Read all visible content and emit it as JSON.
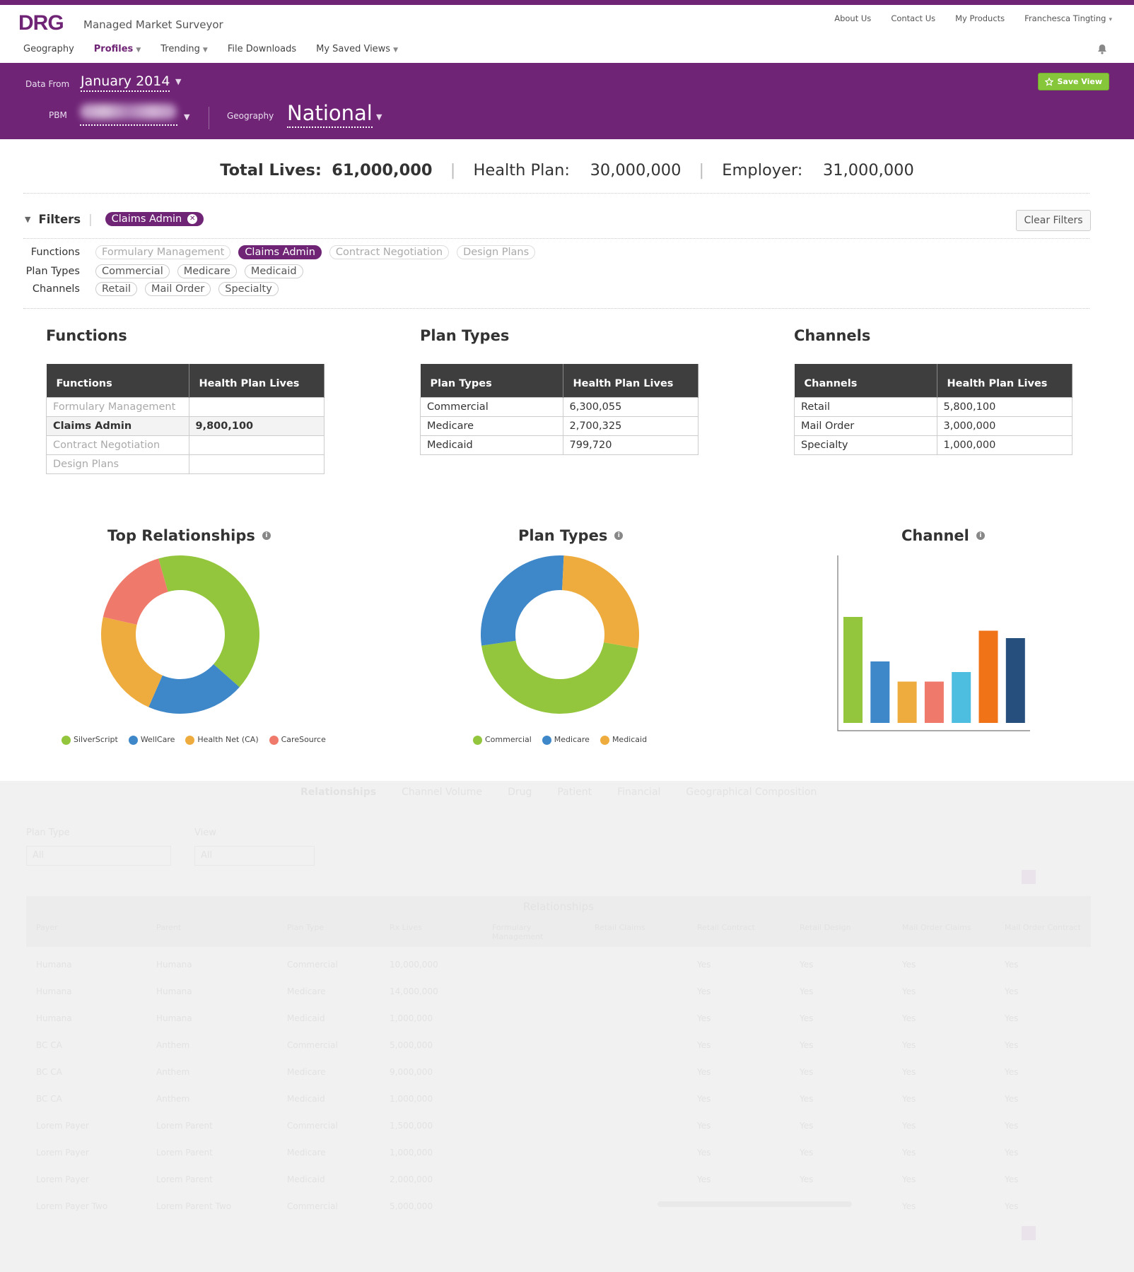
{
  "app": {
    "logo": "DRG",
    "name": "Managed Market Surveyor"
  },
  "util_nav": [
    "About Us",
    "Contact Us",
    "My Products",
    "Franchesca Tingting"
  ],
  "main_nav": [
    {
      "label": "Geography",
      "active": false,
      "caret": false
    },
    {
      "label": "Profiles",
      "active": true,
      "caret": true
    },
    {
      "label": "Trending",
      "active": false,
      "caret": true
    },
    {
      "label": "File Downloads",
      "active": false,
      "caret": false
    },
    {
      "label": "My Saved Views",
      "active": false,
      "caret": true
    }
  ],
  "banner": {
    "data_from_label": "Data From",
    "data_from_value": "January 2014",
    "pbm_label": "PBM",
    "geography_label": "Geography",
    "geography_value": "National",
    "save_view": "Save View"
  },
  "totals": {
    "total_label": "Total Lives:",
    "total_value": "61,000,000",
    "health_label": "Health Plan:",
    "health_value": "30,000,000",
    "employer_label": "Employer:",
    "employer_value": "31,000,000"
  },
  "filters": {
    "title": "Filters",
    "active_chip": "Claims Admin",
    "clear": "Clear Filters",
    "rows": [
      {
        "label": "Functions",
        "pills": [
          {
            "text": "Formulary Management",
            "state": "dim"
          },
          {
            "text": "Claims Admin",
            "state": "on"
          },
          {
            "text": "Contract Negotiation",
            "state": "dim"
          },
          {
            "text": "Design Plans",
            "state": "dim"
          }
        ]
      },
      {
        "label": "Plan Types",
        "pills": [
          {
            "text": "Commercial",
            "state": "normal"
          },
          {
            "text": "Medicare",
            "state": "normal"
          },
          {
            "text": "Medicaid",
            "state": "normal"
          }
        ]
      },
      {
        "label": "Channels",
        "pills": [
          {
            "text": "Retail",
            "state": "normal"
          },
          {
            "text": "Mail Order",
            "state": "normal"
          },
          {
            "text": "Specialty",
            "state": "normal"
          }
        ]
      }
    ]
  },
  "tables": [
    {
      "title": "Functions",
      "headers": [
        "Functions",
        "Health Plan Lives"
      ],
      "rows": [
        {
          "name": "Formulary Management",
          "value": "",
          "style": "dim"
        },
        {
          "name": "Claims Admin",
          "value": "9,800,100",
          "style": "hl"
        },
        {
          "name": "Contract Negotiation",
          "value": "",
          "style": "dim"
        },
        {
          "name": "Design Plans",
          "value": "",
          "style": "dim"
        }
      ]
    },
    {
      "title": "Plan Types",
      "headers": [
        "Plan Types",
        "Health Plan Lives"
      ],
      "rows": [
        {
          "name": "Commercial",
          "value": "6,300,055",
          "style": ""
        },
        {
          "name": "Medicare",
          "value": "2,700,325",
          "style": ""
        },
        {
          "name": "Medicaid",
          "value": "799,720",
          "style": ""
        }
      ]
    },
    {
      "title": "Channels",
      "headers": [
        "Channels",
        "Health Plan Lives"
      ],
      "rows": [
        {
          "name": "Retail",
          "value": "5,800,100",
          "style": ""
        },
        {
          "name": "Mail Order",
          "value": "3,000,000",
          "style": ""
        },
        {
          "name": "Specialty",
          "value": "1,000,000",
          "style": ""
        }
      ]
    }
  ],
  "chart_data": [
    {
      "type": "pie",
      "title": "Top Relationships",
      "labels": [
        "SilverScript",
        "WellCare",
        "Health Net (CA)",
        "CareSource"
      ],
      "values": [
        41,
        20,
        22,
        17
      ],
      "colors": [
        "#93c63d",
        "#3e87c9",
        "#efac3e",
        "#ef7a6b"
      ]
    },
    {
      "type": "pie",
      "title": "Plan Types",
      "labels": [
        "Commercial",
        "Medicare",
        "Medicaid"
      ],
      "values": [
        45,
        28,
        27
      ],
      "colors": [
        "#93c63d",
        "#3e87c9",
        "#efac3e"
      ]
    },
    {
      "type": "bar",
      "title": "Channel",
      "values": [
        100,
        58,
        39,
        39,
        48,
        87,
        80
      ],
      "colors": [
        "#93c63d",
        "#3e87c9",
        "#efac3e",
        "#ef7a6b",
        "#4dbde0",
        "#f07317",
        "#264f7e"
      ]
    }
  ],
  "lower_section": {
    "tabs": [
      "Relationships",
      "Channel Volume",
      "Drug",
      "Patient",
      "Financial",
      "Geographical Composition"
    ],
    "plan_type_label": "Plan Type",
    "plan_type_value": "All",
    "view_label": "View",
    "view_value": "All",
    "table_title": "Relationships",
    "columns": [
      "Payer",
      "Parent",
      "Plan Type",
      "Rx Lives",
      "Formulary Management",
      "Retail Claims",
      "Retail Contract",
      "Retail Design",
      "Mail Order Claims",
      "Mail Order Contract"
    ],
    "rows": [
      [
        "Humana",
        "Humana",
        "Commercial",
        "10,000,000",
        "",
        "",
        "Yes",
        "Yes",
        "Yes",
        "Yes"
      ],
      [
        "Humana",
        "Humana",
        "Medicare",
        "14,000,000",
        "",
        "",
        "Yes",
        "Yes",
        "Yes",
        "Yes"
      ],
      [
        "Humana",
        "Humana",
        "Medicaid",
        "1,000,000",
        "",
        "",
        "Yes",
        "Yes",
        "Yes",
        "Yes"
      ],
      [
        "BC CA",
        "Anthem",
        "Commercial",
        "5,000,000",
        "",
        "",
        "Yes",
        "Yes",
        "Yes",
        "Yes"
      ],
      [
        "BC CA",
        "Anthem",
        "Medicare",
        "9,000,000",
        "",
        "",
        "Yes",
        "Yes",
        "Yes",
        "Yes"
      ],
      [
        "BC CA",
        "Anthem",
        "Medicaid",
        "1,000,000",
        "",
        "",
        "Yes",
        "Yes",
        "Yes",
        "Yes"
      ],
      [
        "Lorem Payer",
        "Lorem Parent",
        "Commercial",
        "1,500,000",
        "",
        "",
        "Yes",
        "Yes",
        "Yes",
        "Yes"
      ],
      [
        "Lorem Payer",
        "Lorem Parent",
        "Medicare",
        "1,000,000",
        "",
        "",
        "Yes",
        "Yes",
        "Yes",
        "Yes"
      ],
      [
        "Lorem Payer",
        "Lorem Parent",
        "Medicaid",
        "2,000,000",
        "",
        "",
        "Yes",
        "Yes",
        "Yes",
        "Yes"
      ],
      [
        "Lorem Payer Two",
        "Lorem Parent Two",
        "Commercial",
        "5,000,000",
        "",
        "",
        "",
        "",
        "Yes",
        "Yes"
      ]
    ]
  },
  "colors": {
    "brand": "#6f2475",
    "save_green": "#86c63b",
    "table_header": "#3e3e3e"
  }
}
